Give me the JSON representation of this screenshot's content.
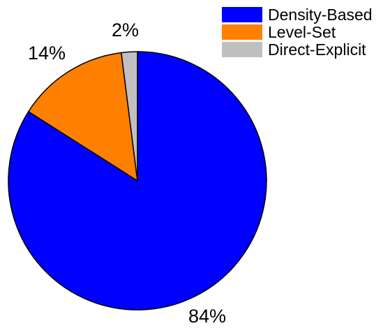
{
  "chart_data": {
    "type": "pie",
    "title": "",
    "legend_placement": "top-right",
    "start_angle_deg": 0,
    "direction": "clockwise",
    "slices": [
      {
        "label": "Density-Based",
        "value": 84,
        "display": "84%",
        "color": "#0000FF"
      },
      {
        "label": "Level-Set",
        "value": 14,
        "display": "14%",
        "color": "#FF8000"
      },
      {
        "label": "Direct-Explicit",
        "value": 2,
        "display": "2%",
        "color": "#C0C0C0"
      }
    ]
  }
}
